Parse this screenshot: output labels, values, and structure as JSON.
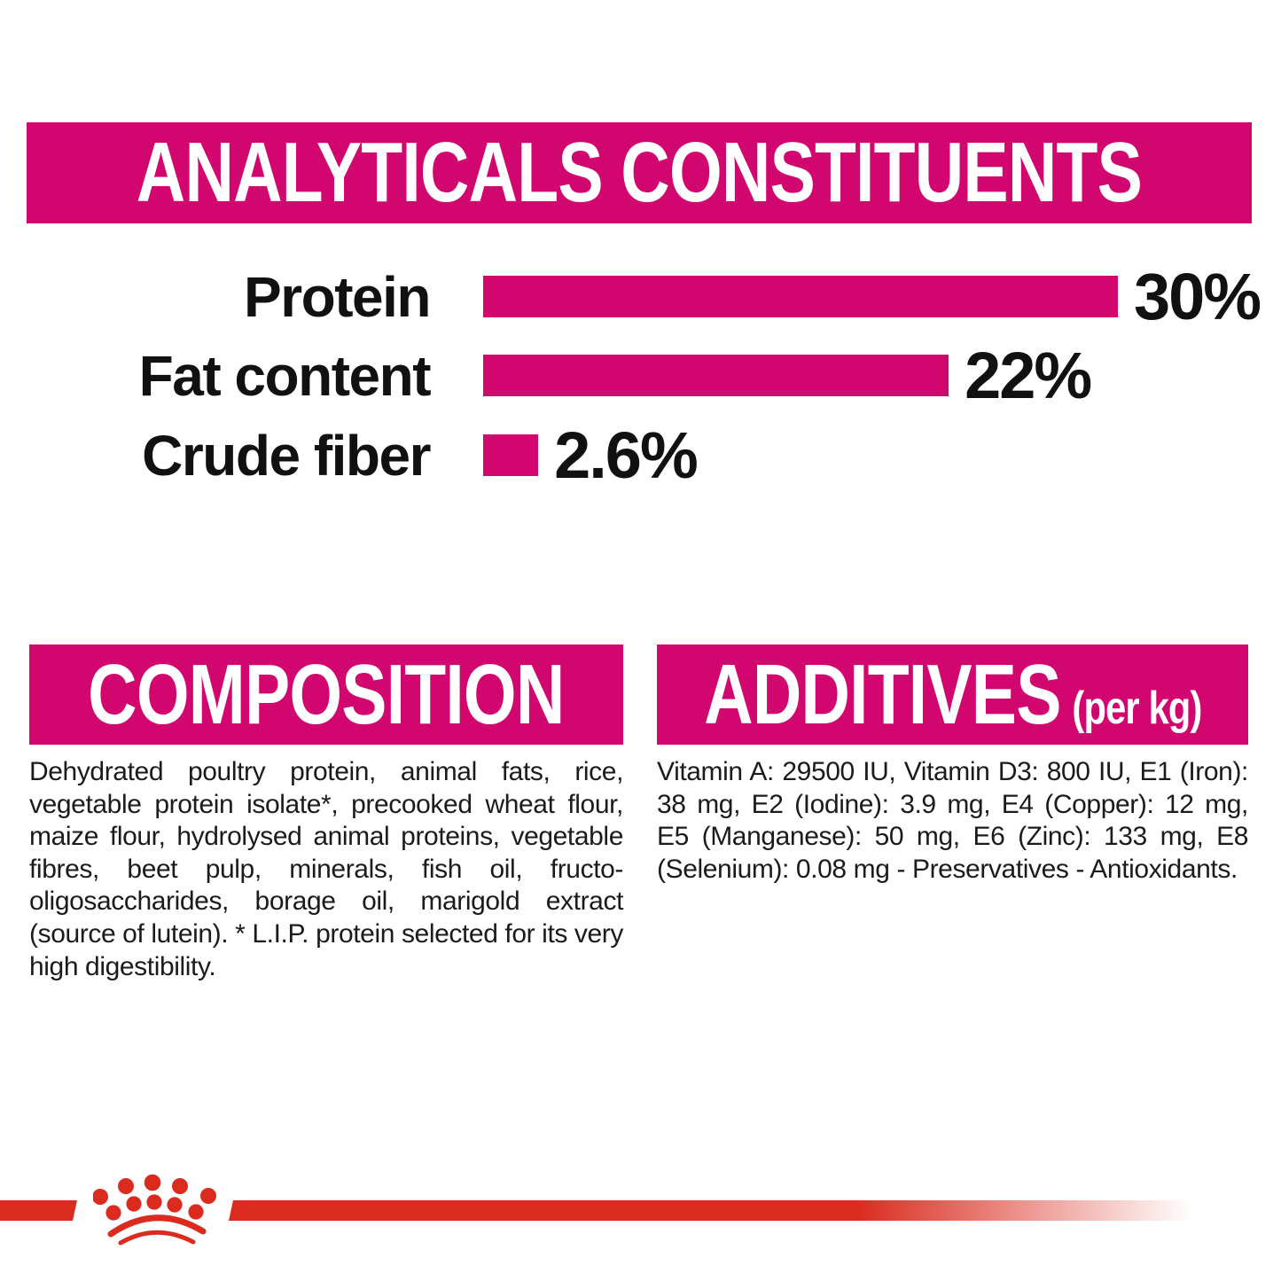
{
  "colors": {
    "pink": "#D2066F",
    "red": "#DB2A1E",
    "text": "#1B1B1B"
  },
  "header": {
    "title": "ANALYTICALS CONSTITUENTS"
  },
  "chart_data": {
    "type": "bar",
    "orientation": "horizontal",
    "title": "ANALYTICALS CONSTITUENTS",
    "categories": [
      "Protein",
      "Fat content",
      "Crude fiber"
    ],
    "values": [
      30,
      22,
      2.6
    ],
    "value_labels": [
      "30%",
      "22%",
      "2.6%"
    ],
    "unit": "%",
    "xlim": [
      0,
      30
    ],
    "bar_color": "#D2066F",
    "grid": false,
    "legend": false
  },
  "sections": {
    "composition": {
      "title": "COMPOSITION",
      "body": "Dehydrated poultry protein, animal fats, rice, vegetable protein isolate*, precooked wheat flour, maize flour, hydrolysed animal proteins, vegetable fibres, beet pulp, minerals, fish oil, fructo-oligosaccharides, borage oil, marigold extract (source of lutein). * L.I.P. protein selected for its very high digestibility."
    },
    "additives": {
      "title": "ADDITIVES",
      "title_suffix": "(per kg)",
      "body": "Vitamin A: 29500 IU, Vitamin D3: 800 IU, E1 (Iron): 38 mg, E2 (Iodine): 3.9 mg, E4 (Copper): 12 mg, E5 (Manganese): 50 mg, E6 (Zinc): 133 mg, E8 (Selenium): 0.08 mg - Preservatives - Antioxidants."
    }
  },
  "footer": {
    "brand_icon": "royal-canin-crown-icon"
  }
}
